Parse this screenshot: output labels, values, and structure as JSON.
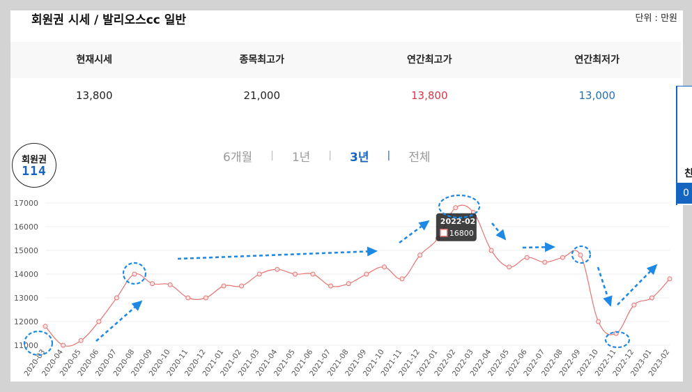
{
  "header": {
    "title": "회원권 시세 / 발리오스cc 일반",
    "unit": "단위 : 만원"
  },
  "summary": {
    "columns": [
      "현재시세",
      "종목최고가",
      "연간최고가",
      "연간최저가"
    ],
    "values": [
      "13,800",
      "21,000",
      "13,800",
      "13,000"
    ],
    "colors": {
      "annual_high": "#d9354a",
      "annual_low": "#1f6fbf"
    }
  },
  "badge": {
    "line1": "회원권",
    "line2": "114"
  },
  "tabs": [
    "6개월",
    "1년",
    "3년",
    "전체"
  ],
  "active_tab": "3년",
  "side": {
    "text": "친",
    "button": "0"
  },
  "tooltip": {
    "label": "2022-02",
    "value": "16800"
  },
  "chart_data": {
    "type": "line",
    "x": [
      "2020-03",
      "2020-04",
      "2020-05",
      "2020-06",
      "2020-07",
      "2020-08",
      "2020-09",
      "2020-10",
      "2020-11",
      "2020-12",
      "2021-01",
      "2021-02",
      "2021-03",
      "2021-04",
      "2021-05",
      "2021-06",
      "2021-07",
      "2021-08",
      "2021-09",
      "2021-10",
      "2021-11",
      "2021-12",
      "2022-01",
      "2022-02",
      "2022-03",
      "2022-04",
      "2022-05",
      "2022-06",
      "2022-07",
      "2022-08",
      "2022-09",
      "2022-10",
      "2022-11",
      "2022-12",
      "2023-01",
      "2023-02"
    ],
    "x_tick_labels": [
      "2020-03",
      "2020-04",
      "2020-05",
      "2020-06",
      "2020-07",
      "2020-08",
      "2020-09",
      "2020-10",
      "2020-11",
      "2020-12",
      "2021-01",
      "2021-02",
      "2021-03",
      "2021-04",
      "2021-05",
      "2021-06",
      "2021-07",
      "2021-08",
      "2021-09",
      "2021-10",
      "2021-11",
      "2021-12",
      "2022-01",
      "2022-02",
      "2022-03",
      "2022-04",
      "2022-05",
      "2022-06",
      "2022-07",
      "2022-08",
      "2022-09",
      "2022-10",
      "2022-11",
      "2022-12",
      "2023-01",
      "2023-02"
    ],
    "series": [
      {
        "values": [
          11800,
          11000,
          11200,
          12000,
          13000,
          14000,
          13600,
          13550,
          13000,
          13000,
          13500,
          13500,
          14000,
          14200,
          14000,
          14000,
          13500,
          13600,
          14000,
          14300,
          13800,
          14800,
          15500,
          16800,
          16600,
          15000,
          14300,
          14700,
          14500,
          14700,
          14800,
          12000,
          11500,
          12700,
          13000,
          13800
        ]
      }
    ],
    "yticks": [
      11000,
      12000,
      13000,
      14000,
      15000,
      16000,
      17000
    ],
    "ylim": [
      11000,
      17000
    ],
    "grid": true,
    "line_color": "#e57373"
  }
}
